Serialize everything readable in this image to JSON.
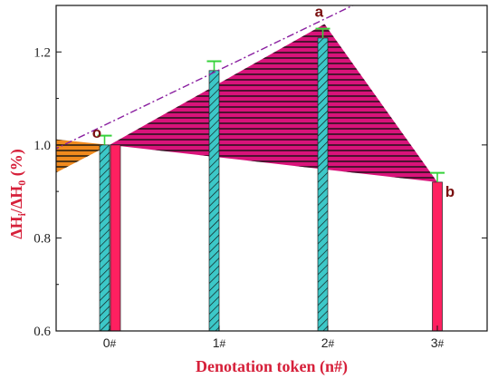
{
  "chart_data": {
    "type": "bar",
    "xlabel": "Denotation token (n#)",
    "ylabel_parts": {
      "main1": "ΔH",
      "sub1": "i",
      "slash": "/ΔH",
      "sub2": "0",
      "unit": " (%)"
    },
    "ylim": [
      0.6,
      1.3
    ],
    "yticks": [
      "0.6",
      "0.8",
      "1.0",
      "1.2"
    ],
    "ytick_values": [
      0.6,
      0.8,
      1.0,
      1.2
    ],
    "x_positions": [
      0,
      1,
      2,
      3
    ],
    "xtick_labels": [
      {
        "num": "0",
        "hash": "#"
      },
      {
        "num": "1",
        "hash": "#"
      },
      {
        "num": "2",
        "hash": "#"
      },
      {
        "num": "3",
        "hash": "#"
      }
    ],
    "series": [
      {
        "color": "#3cc8c8",
        "hatch": true,
        "x": [
          0,
          1,
          2
        ],
        "values": [
          1.0,
          1.16,
          1.23
        ],
        "errors": [
          0.02,
          0.02,
          0.02
        ]
      },
      {
        "color": "#ff2060",
        "hatch": false,
        "x": [
          0,
          3
        ],
        "values": [
          1.0,
          0.92
        ],
        "errors": [
          0.0,
          0.02
        ]
      }
    ],
    "lower_line": {
      "x": [
        0,
        3
      ],
      "y": [
        1.0,
        0.92
      ]
    },
    "upper_line": {
      "x": [
        0,
        1.97
      ],
      "y": [
        1.0,
        1.26
      ]
    },
    "points": [
      {
        "label": "o",
        "x": 0,
        "y": 1.0
      },
      {
        "label": "a",
        "x": 1.97,
        "y": 1.26
      },
      {
        "label": "b",
        "x": 3,
        "y": 0.92
      }
    ],
    "colors": {
      "triangle": "#d9137a",
      "wedge": "#f08a1e",
      "errorbar": "#36d23a",
      "line": "#8a1fa0"
    },
    "grid": false
  }
}
